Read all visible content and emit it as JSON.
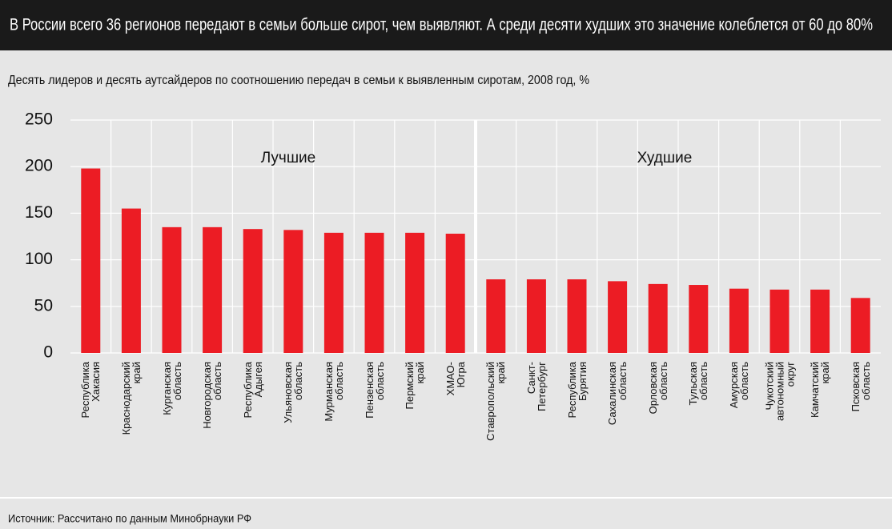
{
  "chart_data": {
    "type": "bar",
    "title": "В России всего 36 регионов передают в семьи больше сирот, чем выявляют. А среди десяти худших это значение колеблется от 60 до 80%",
    "subtitle": "Десять лидеров и десять аутсайдеров по соотношению передач в семьи к выявленным сиротам, 2008 год, %",
    "source": "Источник: Рассчитано по данным Минобрнауки РФ",
    "annotations": [
      "Лучшие",
      "Худшие"
    ],
    "categories": [
      "Республика\nХакасия",
      "Краснодарский\nкрай",
      "Курганская\nобласть",
      "Новгородская\nобласть",
      "Республика\nАдыгея",
      "Ульяновская\nобласть",
      "Мурманская\nобласть",
      "Пензенская\nобласть",
      "Пермский\nкрай",
      "ХМАО-\nЮгра",
      "Ставропольский\nкрай",
      "Санкт-\nПетербург",
      "Республика\nБурятия",
      "Сахалинская\nобласть",
      "Орловская\nобласть",
      "Тульская\nобласть",
      "Амурская\nобласть",
      "Чукотский\nавтономный\nокруг",
      "Камчатский\nкрай",
      "Псковская\nобласть"
    ],
    "values": [
      198,
      155,
      135,
      135,
      133,
      132,
      129,
      129,
      129,
      128,
      79,
      79,
      79,
      77,
      74,
      73,
      69,
      68,
      68,
      59
    ],
    "color": "#ec1c24",
    "ylim": [
      0,
      250
    ],
    "yticks": [
      0,
      50,
      100,
      150,
      200,
      250
    ],
    "grid": true
  }
}
